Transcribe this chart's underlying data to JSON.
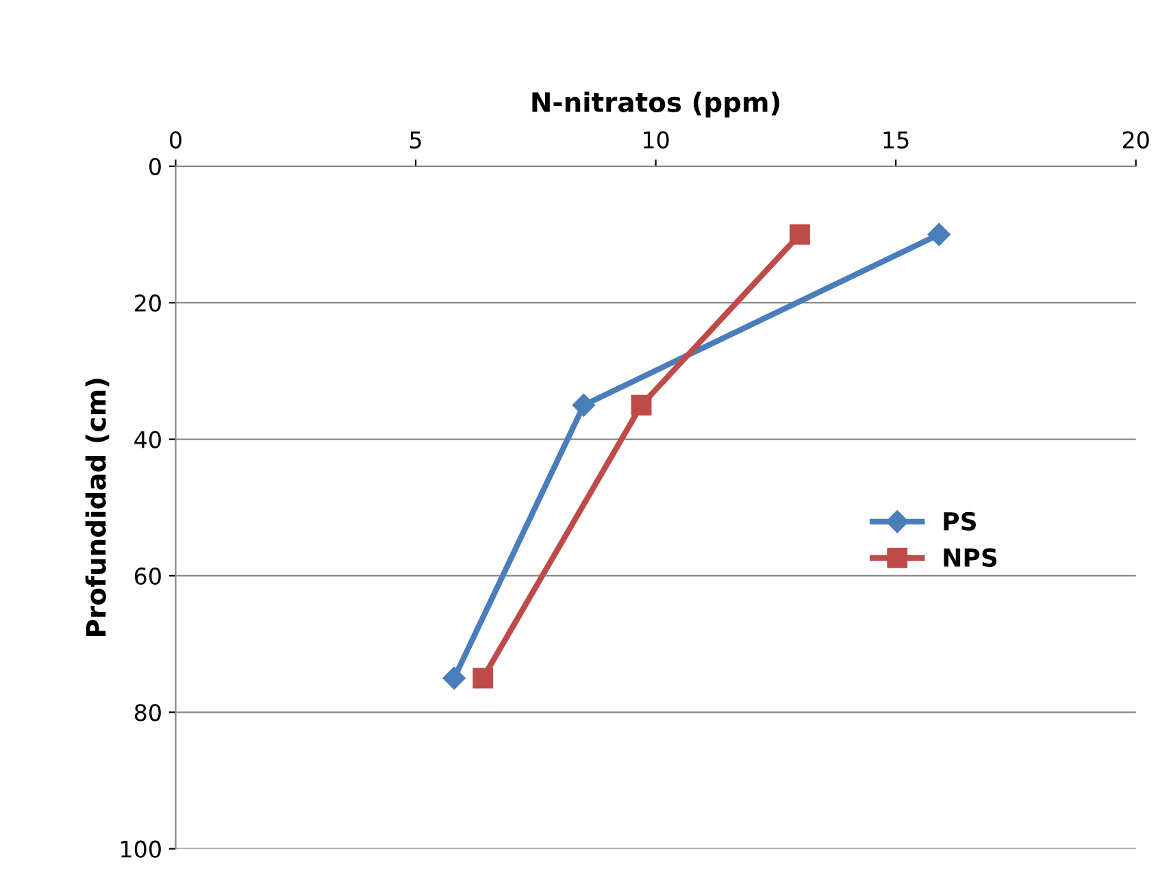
{
  "chart_data": {
    "type": "line",
    "xlabel": "N-nitratos (ppm)",
    "ylabel": "Profundidad (cm)",
    "xlim": [
      0,
      20
    ],
    "xticks": [
      0,
      5,
      10,
      15,
      20
    ],
    "ylim": [
      100,
      0
    ],
    "yticks": [
      0,
      20,
      40,
      60,
      80,
      100
    ],
    "grid": "y",
    "legend": "right",
    "line_style": "solid",
    "series": [
      {
        "name": "PS",
        "color": "#4a7ebb",
        "x": [
          15.9,
          8.5,
          5.8
        ],
        "values": [
          10,
          35,
          75
        ],
        "marker": "diamond"
      },
      {
        "name": "NPS",
        "color": "#be4b48",
        "x": [
          13,
          9.7,
          6.4
        ],
        "values": [
          10,
          35,
          75
        ],
        "marker": "square"
      }
    ]
  }
}
